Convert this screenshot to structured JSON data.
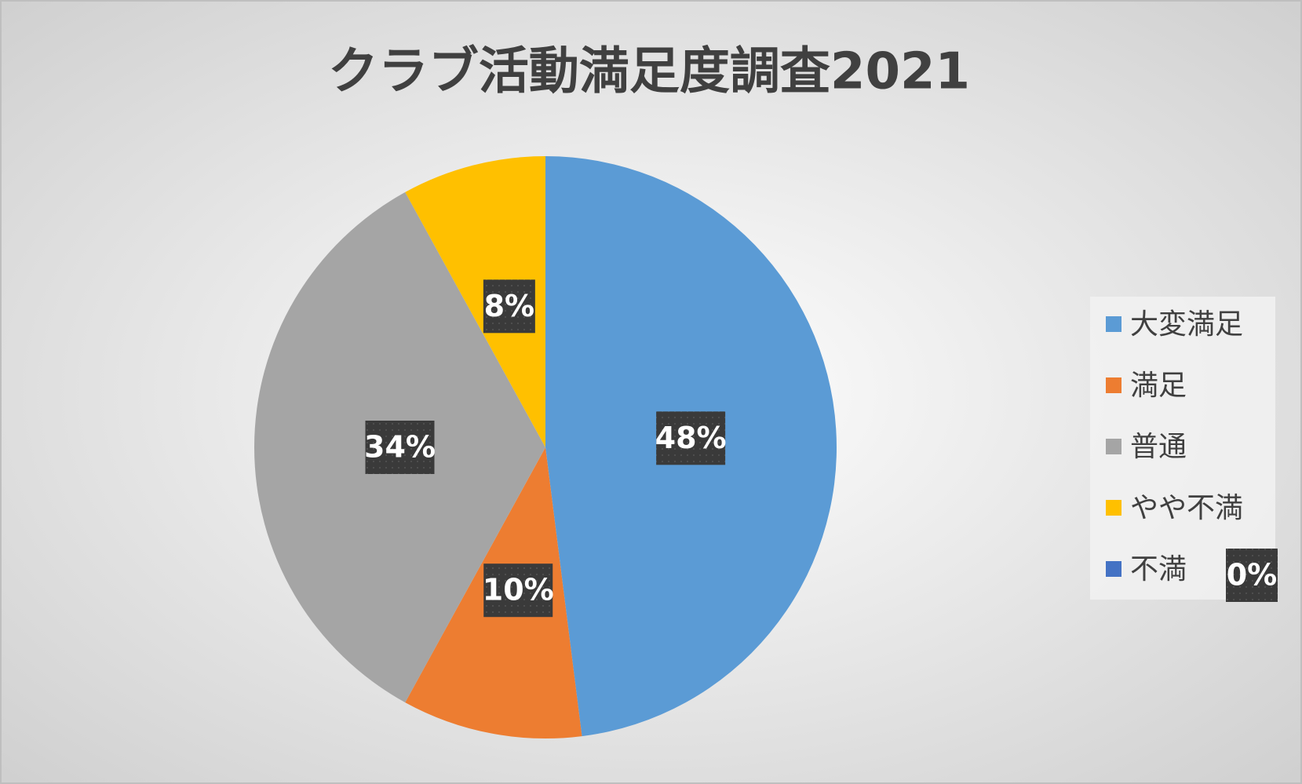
{
  "chart_data": {
    "type": "pie",
    "title": "クラブ活動満足度調査2021",
    "categories": [
      "大変満足",
      "満足",
      "普通",
      "やや不満",
      "不満"
    ],
    "values": [
      48,
      10,
      34,
      8,
      0
    ],
    "value_labels": [
      "48%",
      "10%",
      "34%",
      "8%",
      "0%"
    ],
    "colors": [
      "#5b9bd5",
      "#ed7d31",
      "#a5a5a5",
      "#ffc000",
      "#4472c4"
    ],
    "legend": "right"
  }
}
